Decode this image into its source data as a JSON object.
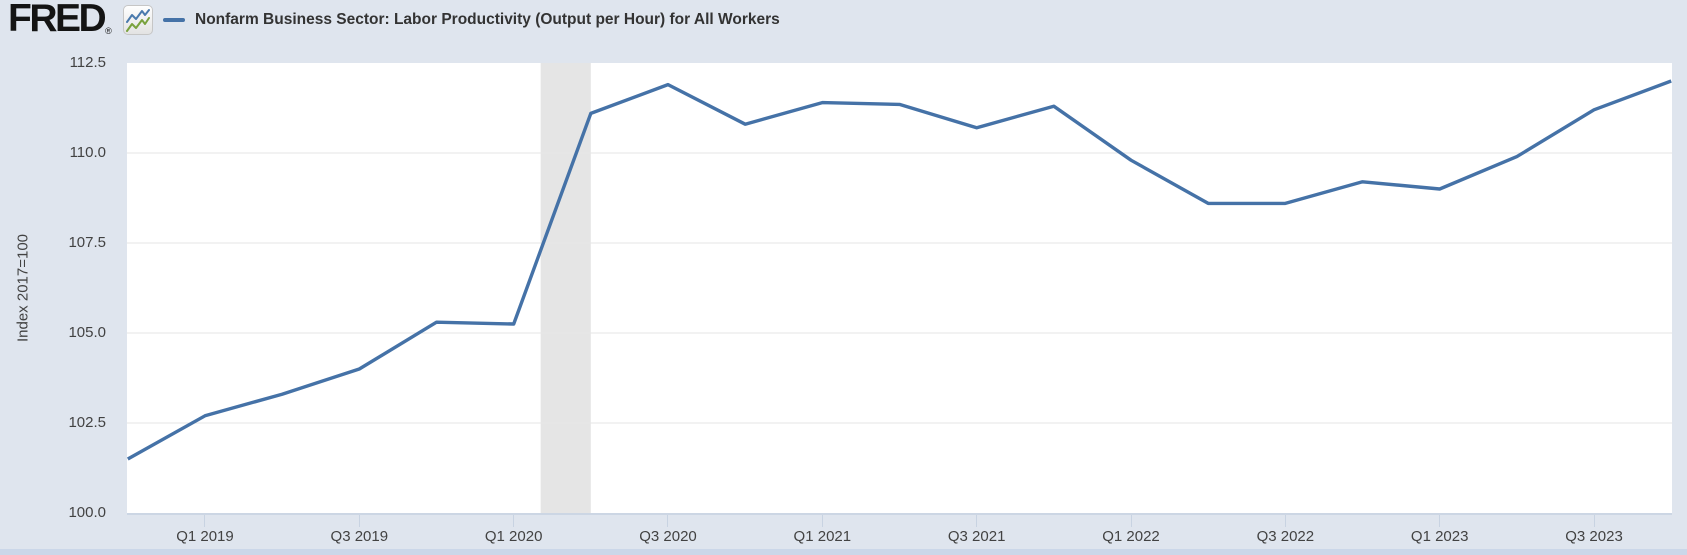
{
  "header": {
    "logo_text": "FRED",
    "registered_mark": "®",
    "legend": {
      "series_label": "Nonfarm Business Sector: Labor Productivity (Output per Hour) for All Workers"
    }
  },
  "chart_data": {
    "type": "line",
    "title": "Nonfarm Business Sector: Labor Productivity (Output per Hour) for All Workers",
    "ylabel": "Index 2017=100",
    "xlabel": "",
    "ylim": [
      100.0,
      112.5
    ],
    "grid": true,
    "legend_position": "top-left",
    "categories": [
      "2018 Q4",
      "2019 Q1",
      "2019 Q2",
      "2019 Q3",
      "2019 Q4",
      "2020 Q1",
      "2020 Q2",
      "2020 Q3",
      "2020 Q4",
      "2021 Q1",
      "2021 Q2",
      "2021 Q3",
      "2021 Q4",
      "2022 Q1",
      "2022 Q2",
      "2022 Q3",
      "2022 Q4",
      "2023 Q1",
      "2023 Q2",
      "2023 Q3",
      "2023 Q4"
    ],
    "values": [
      101.5,
      102.7,
      103.3,
      104.0,
      105.3,
      105.25,
      111.1,
      111.9,
      110.8,
      111.4,
      111.35,
      110.7,
      111.3,
      109.8,
      108.6,
      108.6,
      109.2,
      109.0,
      109.9,
      111.2,
      112.0
    ],
    "y_ticks": [
      {
        "label": "112.5",
        "value": 112.5
      },
      {
        "label": "110.0",
        "value": 110.0
      },
      {
        "label": "107.5",
        "value": 107.5
      },
      {
        "label": "105.0",
        "value": 105.0
      },
      {
        "label": "102.5",
        "value": 102.5
      },
      {
        "label": "100.0",
        "value": 100.0
      }
    ],
    "x_ticks": [
      {
        "label": "Q1 2019",
        "index": 1
      },
      {
        "label": "Q3 2019",
        "index": 3
      },
      {
        "label": "Q1 2020",
        "index": 5
      },
      {
        "label": "Q3 2020",
        "index": 7
      },
      {
        "label": "Q1 2021",
        "index": 9
      },
      {
        "label": "Q3 2021",
        "index": 11
      },
      {
        "label": "Q1 2022",
        "index": 13
      },
      {
        "label": "Q3 2022",
        "index": 15
      },
      {
        "label": "Q1 2023",
        "index": 17
      },
      {
        "label": "Q3 2023",
        "index": 19
      }
    ],
    "recession_band": {
      "start_index": 5.35,
      "end_index": 6.0
    }
  },
  "colors": {
    "line": "#4572a7",
    "recession_band": "#e5e5e5",
    "gridline": "#e6e6e6",
    "background": "#dfe5ee",
    "plot_background": "#ffffff",
    "icon_line_blue": "#4a7aad",
    "icon_line_green": "#79a23d"
  }
}
